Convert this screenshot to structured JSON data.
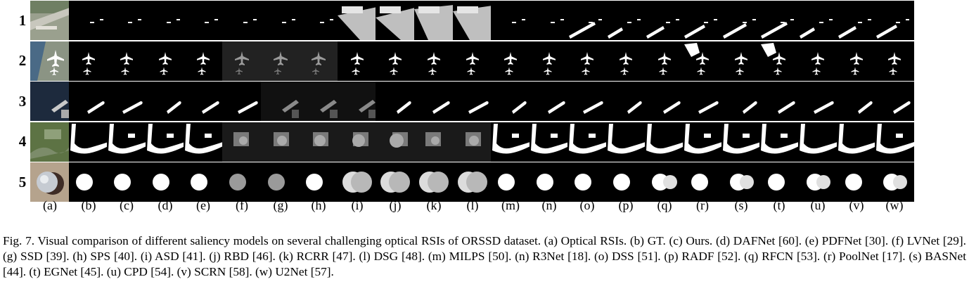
{
  "figure": {
    "rows": [
      "1",
      "2",
      "3",
      "4",
      "5"
    ],
    "columns": [
      "(a)",
      "(b)",
      "(c)",
      "(d)",
      "(e)",
      "(f)",
      "(g)",
      "(h)",
      "(i)",
      "(j)",
      "(k)",
      "(l)",
      "(m)",
      "(n)",
      "(o)",
      "(p)",
      "(q)",
      "(r)",
      "(s)",
      "(t)",
      "(u)",
      "(v)",
      "(w)"
    ],
    "caption": "Fig. 7.    Visual comparison of different saliency models on several challenging optical RSIs of ORSSD dataset. (a) Optical RSIs. (b) GT. (c) Ours. (d) DAFNet [60]. (e) PDFNet [30]. (f) LVNet [29]. (g) SSD [39]. (h) SPS [40]. (i) ASD [41]. (j) RBD [46]. (k) RCRR [47]. (l) DSG [48]. (m) MILPS [50]. (n) R3Net [18]. (o) DSS [51]. (p) RADF [52]. (q) RFCN [53]. (r) PoolNet [17]. (s) BASNet [44]. (t) EGNet [45]. (u) CPD [54]. (v) SCRN [58]. (w) U2Net [57]."
  }
}
